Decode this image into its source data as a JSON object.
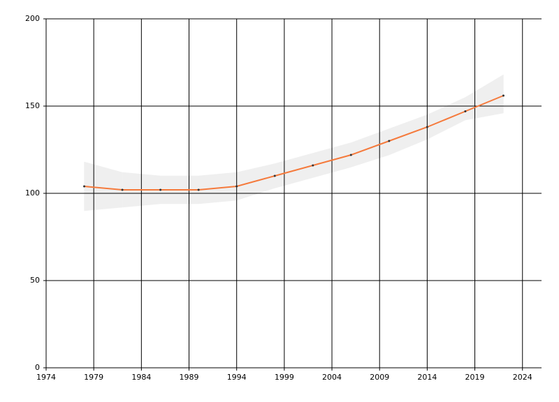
{
  "chart_data": {
    "type": "line",
    "x": [
      1978,
      1982,
      1986,
      1990,
      1994,
      1998,
      2002,
      2006,
      2010,
      2014,
      2018,
      2022
    ],
    "series": [
      {
        "color": "#f57a3c",
        "values": [
          104,
          102,
          102,
          102,
          104,
          110,
          116,
          122,
          130,
          138,
          147,
          156
        ],
        "upper": [
          118,
          112,
          110,
          110,
          112,
          117,
          123,
          129,
          137,
          145,
          155,
          168
        ],
        "lower": [
          90,
          92,
          94,
          94,
          96,
          103,
          109,
          115,
          122,
          131,
          142,
          146
        ],
        "band_color": "#efefef",
        "marker_color": "#333333"
      }
    ],
    "xlim": [
      1974,
      2026
    ],
    "xticks": [
      1974,
      1979,
      1984,
      1989,
      1994,
      1999,
      2004,
      2009,
      2014,
      2019,
      2024
    ],
    "ylim": [
      0,
      200
    ],
    "yticks": [
      0,
      50,
      100,
      150,
      200
    ],
    "grid": true
  }
}
